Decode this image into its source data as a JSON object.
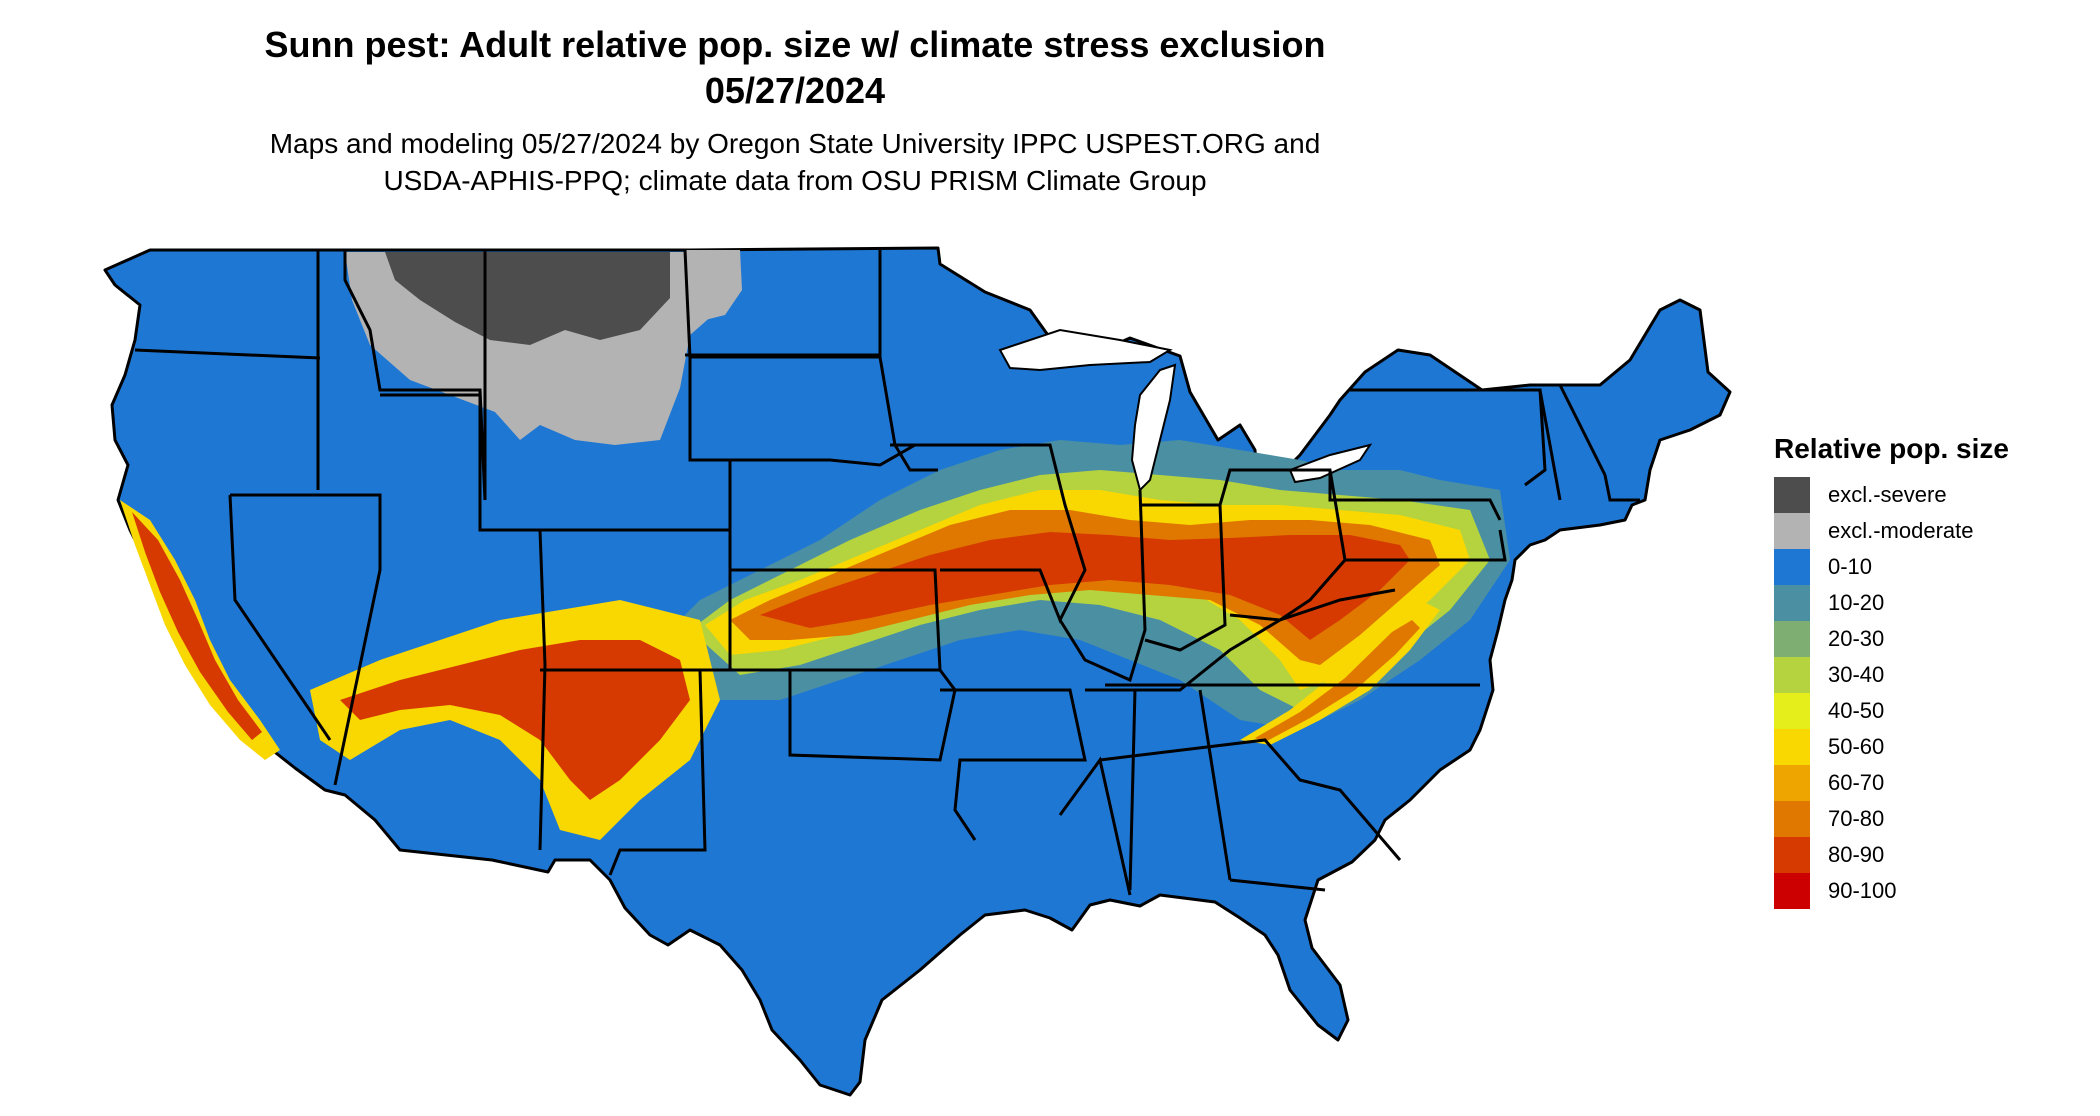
{
  "header": {
    "title_line1": "Sunn pest: Adult relative pop. size w/ climate stress exclusion",
    "title_line2": "05/27/2024",
    "subtitle_line1": "Maps and modeling 05/27/2024 by Oregon State University IPPC USPEST.ORG and",
    "subtitle_line2": "USDA-APHIS-PPQ; climate data from OSU PRISM Climate Group"
  },
  "legend": {
    "title": "Relative pop. size",
    "items": [
      {
        "label": "excl.-severe",
        "color": "#4d4d4d"
      },
      {
        "label": "excl.-moderate",
        "color": "#b3b3b3"
      },
      {
        "label": "0-10",
        "color": "#1f77d4"
      },
      {
        "label": "10-20",
        "color": "#4b8fa3"
      },
      {
        "label": "20-30",
        "color": "#7fae72"
      },
      {
        "label": "30-40",
        "color": "#b4d33f"
      },
      {
        "label": "40-50",
        "color": "#e5ee1a"
      },
      {
        "label": "50-60",
        "color": "#f8d800"
      },
      {
        "label": "60-70",
        "color": "#efa500"
      },
      {
        "label": "70-80",
        "color": "#e07800"
      },
      {
        "label": "80-90",
        "color": "#d63a00"
      },
      {
        "label": "90-100",
        "color": "#cc0000"
      }
    ]
  }
}
